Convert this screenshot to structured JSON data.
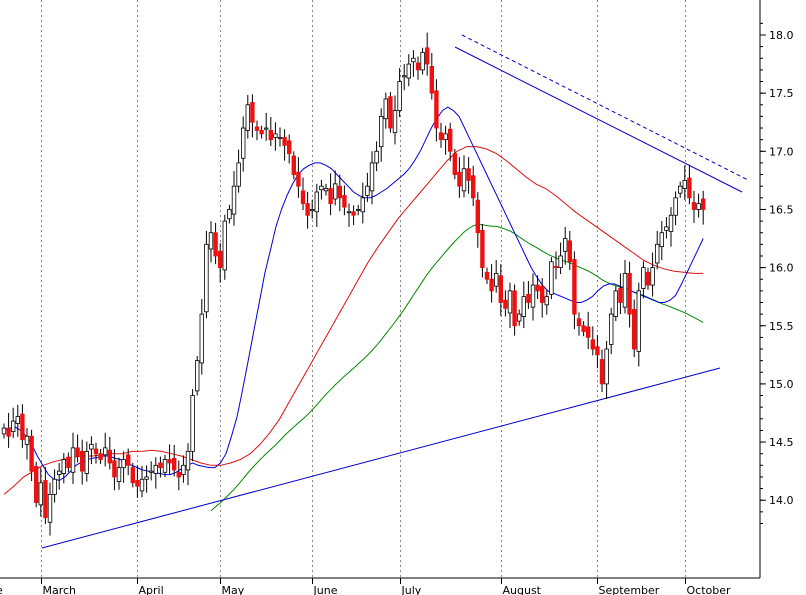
{
  "chart_data": {
    "type": "candlestick",
    "title": "",
    "xlabel": "",
    "ylabel": "",
    "ylim": [
      13.75,
      18.2
    ],
    "grid": true,
    "y_ticks": [
      {
        "value": 14.0,
        "label": "14.0"
      },
      {
        "value": 14.5,
        "label": "14.5"
      },
      {
        "value": 15.0,
        "label": "15.0"
      },
      {
        "value": 15.5,
        "label": "15.5"
      },
      {
        "value": 16.0,
        "label": "16.0"
      },
      {
        "value": 16.5,
        "label": "16.5"
      },
      {
        "value": 17.0,
        "label": "17.0"
      },
      {
        "value": 17.5,
        "label": "17.5"
      },
      {
        "value": 18.0,
        "label": "18.0"
      }
    ],
    "x_ticks": [
      {
        "label": "March",
        "bar": 8
      },
      {
        "label": "April",
        "bar": 29
      },
      {
        "label": "May",
        "bar": 47
      },
      {
        "label": "June",
        "bar": 67
      },
      {
        "label": "July",
        "bar": 86
      },
      {
        "label": "August",
        "bar": 108
      },
      {
        "label": "September",
        "bar": 129
      },
      {
        "label": "October",
        "bar": 148
      }
    ],
    "visible_partial_label": "e",
    "colors": {
      "up": "#ffffff",
      "down": "#ee1111",
      "wick": "#000000",
      "ma_short": "#0000dd",
      "ma_medium": "#dd1111",
      "ma_long": "#008800",
      "trendline": "#0000cc",
      "grid": "#888888"
    },
    "candles_close": [
      14.62,
      14.55,
      14.68,
      14.72,
      14.52,
      14.55,
      14.25,
      13.98,
      14.15,
      13.85,
      14.05,
      14.18,
      14.25,
      14.35,
      14.28,
      14.45,
      14.38,
      14.25,
      14.42,
      14.48,
      14.4,
      14.35,
      14.45,
      14.32,
      14.2,
      14.28,
      14.35,
      14.3,
      14.15,
      14.12,
      14.18,
      14.2,
      14.25,
      14.3,
      14.28,
      14.35,
      14.32,
      14.26,
      14.2,
      14.3,
      14.42,
      14.9,
      15.2,
      15.6,
      16.2,
      16.3,
      16.1,
      16.0,
      16.4,
      16.5,
      16.7,
      16.9,
      17.2,
      17.4,
      17.25,
      17.18,
      17.15,
      17.2,
      17.1,
      17.15,
      17.12,
      17.05,
      16.98,
      16.8,
      16.7,
      16.55,
      16.45,
      16.5,
      16.65,
      16.7,
      16.68,
      16.55,
      16.72,
      16.6,
      16.52,
      16.48,
      16.45,
      16.5,
      16.6,
      16.7,
      16.9,
      17.0,
      17.3,
      17.45,
      17.2,
      17.35,
      17.6,
      17.65,
      17.75,
      17.8,
      17.7,
      17.85,
      17.75,
      17.5,
      17.2,
      17.1,
      17.15,
      17.0,
      16.8,
      16.7,
      16.85,
      16.75,
      16.6,
      16.3,
      16.0,
      15.9,
      15.8,
      15.95,
      15.7,
      15.65,
      15.8,
      15.5,
      15.6,
      15.75,
      15.7,
      15.85,
      15.8,
      15.7,
      15.75,
      16.05,
      16.0,
      16.1,
      16.25,
      16.05,
      15.6,
      15.5,
      15.45,
      15.4,
      15.3,
      15.25,
      15.0,
      15.3,
      15.6,
      15.8,
      15.7,
      15.95,
      15.6,
      15.3,
      15.8,
      16.0,
      15.85,
      16.0,
      16.2,
      16.3,
      16.35,
      16.45,
      16.6,
      16.7,
      16.75,
      16.6,
      16.5,
      16.55,
      16.5
    ],
    "ma_short_values": [
      14.6,
      14.62,
      14.63,
      14.6,
      14.55,
      14.48,
      14.38,
      14.3,
      14.22,
      14.18,
      14.17,
      14.2,
      14.25,
      14.3,
      14.33,
      14.35,
      14.36,
      14.37,
      14.38,
      14.38,
      14.36,
      14.35,
      14.33,
      14.3,
      14.28,
      14.26,
      14.25,
      14.24,
      14.23,
      14.22,
      14.22,
      14.24,
      14.27,
      14.3,
      14.32,
      14.3,
      14.29,
      14.28,
      14.28,
      14.32,
      14.4,
      14.55,
      14.72,
      14.95,
      15.2,
      15.45,
      15.7,
      15.95,
      16.15,
      16.35,
      16.5,
      16.62,
      16.72,
      16.8,
      16.85,
      16.88,
      16.9,
      16.9,
      16.88,
      16.85,
      16.8,
      16.75,
      16.7,
      16.65,
      16.62,
      16.6,
      16.6,
      16.62,
      16.65,
      16.68,
      16.72,
      16.76,
      16.8,
      16.85,
      16.92,
      17.0,
      17.1,
      17.2,
      17.28,
      17.35,
      17.38,
      17.35,
      17.3,
      17.2,
      17.1,
      17.0,
      16.9,
      16.8,
      16.7,
      16.6,
      16.5,
      16.4,
      16.3,
      16.2,
      16.1,
      16.0,
      15.92,
      15.85,
      15.8,
      15.78,
      15.76,
      15.74,
      15.72,
      15.7,
      15.7,
      15.72,
      15.75,
      15.8,
      15.84,
      15.86,
      15.86,
      15.84,
      15.82,
      15.8,
      15.78,
      15.76,
      15.74,
      15.72,
      15.7,
      15.7,
      15.72,
      15.76,
      15.85,
      15.95,
      16.05,
      16.15,
      16.25
    ],
    "ma_medium_values": [
      14.05,
      14.12,
      14.2,
      14.25,
      14.3,
      14.33,
      14.35,
      14.37,
      14.38,
      14.38,
      14.39,
      14.4,
      14.4,
      14.42,
      14.42,
      14.43,
      14.42,
      14.4,
      14.38,
      14.35,
      14.32,
      14.3,
      14.3,
      14.32,
      14.35,
      14.4,
      14.48,
      14.58,
      14.7,
      14.85,
      15.0,
      15.15,
      15.3,
      15.45,
      15.6,
      15.75,
      15.9,
      16.05,
      16.18,
      16.3,
      16.42,
      16.52,
      16.62,
      16.72,
      16.82,
      16.92,
      17.0,
      17.04,
      17.04,
      17.02,
      16.98,
      16.92,
      16.85,
      16.78,
      16.72,
      16.68,
      16.62,
      16.55,
      16.48,
      16.42,
      16.36,
      16.3,
      16.24,
      16.18,
      16.12,
      16.06,
      16.02,
      15.99,
      15.97,
      15.96,
      15.95,
      15.95
    ]
  }
}
